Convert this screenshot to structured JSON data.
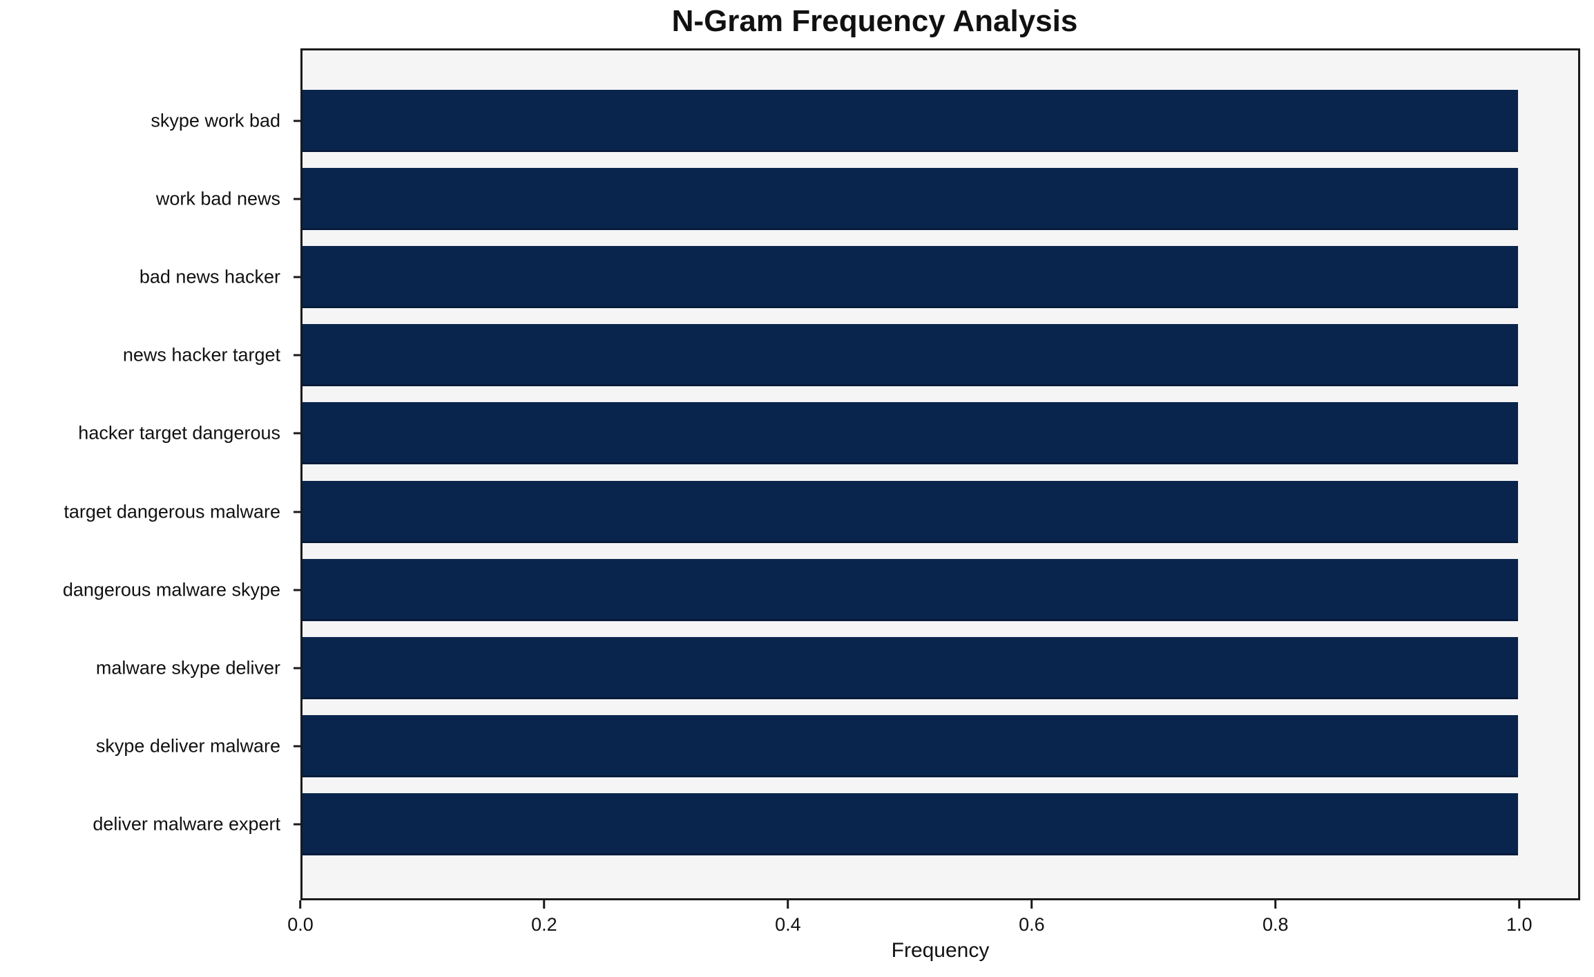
{
  "chart_data": {
    "type": "bar",
    "orientation": "horizontal",
    "title": "N-Gram Frequency Analysis",
    "xlabel": "Frequency",
    "ylabel": "",
    "categories": [
      "skype work bad",
      "work bad news",
      "bad news hacker",
      "news hacker target",
      "hacker target dangerous",
      "target dangerous malware",
      "dangerous malware skype",
      "malware skype deliver",
      "skype deliver malware",
      "deliver malware expert"
    ],
    "values": [
      1.0,
      1.0,
      1.0,
      1.0,
      1.0,
      1.0,
      1.0,
      1.0,
      1.0,
      1.0
    ],
    "xticks": [
      0.0,
      0.2,
      0.4,
      0.6,
      0.8,
      1.0
    ],
    "xtick_labels": [
      "0.0",
      "0.2",
      "0.4",
      "0.6",
      "0.8",
      "1.0"
    ],
    "xlim": [
      0.0,
      1.05
    ],
    "grid": false,
    "legend": "none",
    "colors": {
      "bar": "#0a254d",
      "plot_background": "#f5f5f6",
      "figure_background": "#ffffff",
      "spine": "#1a1a1a"
    }
  }
}
